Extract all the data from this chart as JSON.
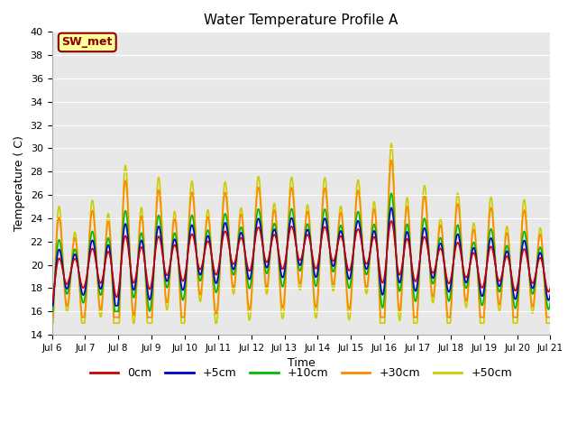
{
  "title": "Water Temperature Profile A",
  "xlabel": "Time",
  "ylabel": "Temperature ( C)",
  "ylim": [
    14,
    40
  ],
  "yticks": [
    14,
    16,
    18,
    20,
    22,
    24,
    26,
    28,
    30,
    32,
    34,
    36,
    38,
    40
  ],
  "xtick_labels": [
    "Jul 6",
    "Jul 7",
    "Jul 8",
    "Jul 9",
    "Jul 10",
    "Jul 11",
    "Jul 12",
    "Jul 13",
    "Jul 14",
    "Jul 15",
    "Jul 16",
    "Jul 17",
    "Jul 18",
    "Jul 19",
    "Jul 20",
    "Jul 21"
  ],
  "series": {
    "0cm": {
      "color": "#cc0000",
      "lw": 1.2
    },
    "+5cm": {
      "color": "#0000cc",
      "lw": 1.2
    },
    "+10cm": {
      "color": "#00bb00",
      "lw": 1.2
    },
    "+30cm": {
      "color": "#ff8800",
      "lw": 1.2
    },
    "+50cm": {
      "color": "#cccc00",
      "lw": 1.2
    }
  },
  "legend_label": "SW_met",
  "legend_color": "#8b0000",
  "legend_bg": "#ffff99",
  "plot_bg": "#e8e8e8",
  "grid_color": "#ffffff"
}
